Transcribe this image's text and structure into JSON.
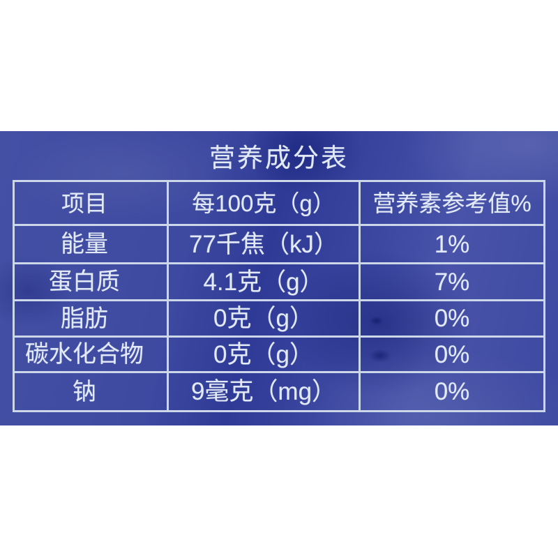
{
  "package": {
    "title": "营养成分表",
    "colors": {
      "package_blue": "#3c489e",
      "package_blue_dark": "#2e3a96",
      "grid_line": "#ccd8ea",
      "text": "#e2e9f7",
      "backdrop": "#ffffff"
    }
  },
  "table": {
    "headers": [
      "项目",
      "每100克（g）",
      "营养素参考值%"
    ],
    "rows": [
      {
        "item": "能量",
        "amount": "77千焦（kJ）",
        "nrv": "1%"
      },
      {
        "item": "蛋白质",
        "amount": "4.1克（g）",
        "nrv": "7%"
      },
      {
        "item": "脂肪",
        "amount": "0克（g）",
        "nrv": "0%"
      },
      {
        "item": "碳水化合物",
        "amount": "0克（g）",
        "nrv": "0%"
      },
      {
        "item": "钠",
        "amount": "9毫克（mg）",
        "nrv": "0%"
      }
    ]
  }
}
